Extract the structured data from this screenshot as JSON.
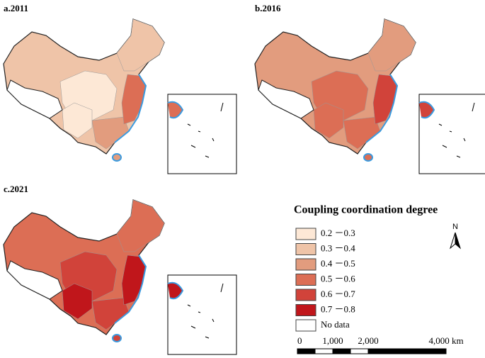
{
  "panels": [
    {
      "label": "a.2011"
    },
    {
      "label": "b.2016"
    },
    {
      "label": "c.2021"
    }
  ],
  "legend": {
    "title": "Coupling coordination degree",
    "items": [
      {
        "label": "0.2 －0.3",
        "color": "#fde8d6"
      },
      {
        "label": "0.3 －0.4",
        "color": "#efc4a8"
      },
      {
        "label": "0.4 －0.5",
        "color": "#e29c7e"
      },
      {
        "label": "0.5 －0.6",
        "color": "#dc6e55"
      },
      {
        "label": "0.6 －0.7",
        "color": "#d1433a"
      },
      {
        "label": "0.7 －0.8",
        "color": "#c0161b"
      },
      {
        "label": "No data",
        "color": "#ffffff"
      }
    ]
  },
  "north": "N",
  "scale_bar": [
    "0",
    "1,000",
    "2,000",
    "4,000 km"
  ]
}
